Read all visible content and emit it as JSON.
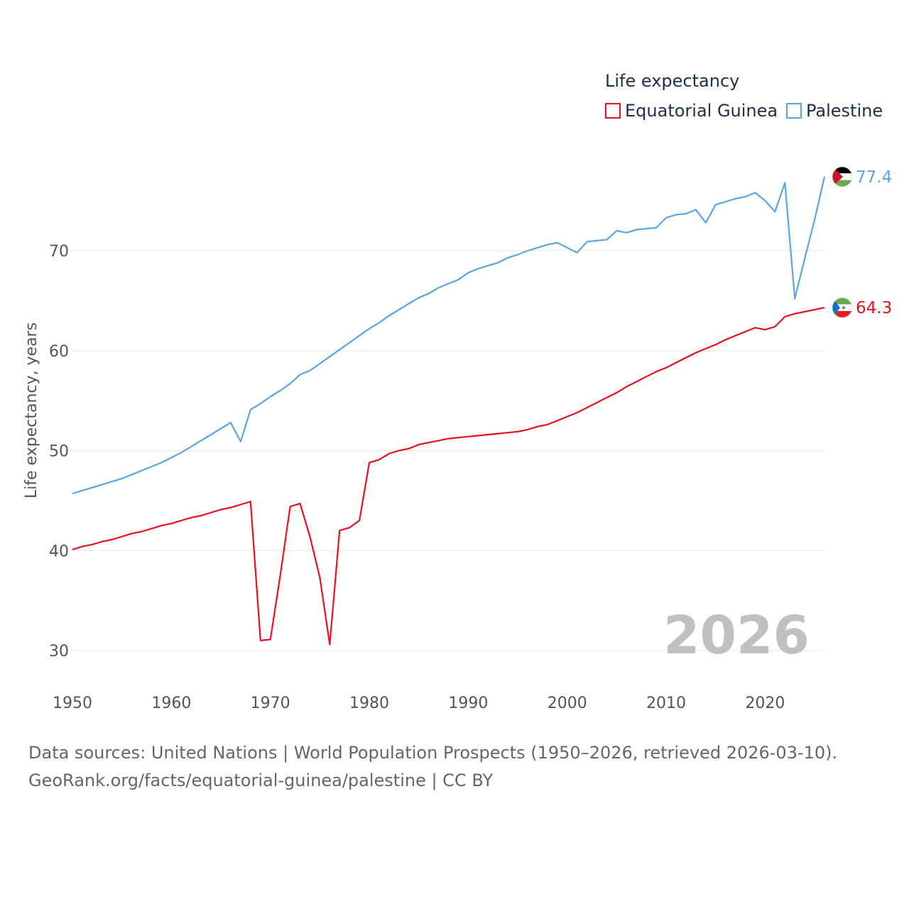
{
  "chart_data": {
    "type": "line",
    "legend_title": "Life expectancy",
    "ylabel": "Life expectancy, years",
    "xlabel": "",
    "xlim": [
      1950,
      2026
    ],
    "ylim": [
      27.5,
      80
    ],
    "x_ticks": [
      1950,
      1960,
      1970,
      1980,
      1990,
      2000,
      2010,
      2020
    ],
    "y_ticks": [
      30,
      40,
      50,
      60,
      70
    ],
    "year_watermark": "2026",
    "legend_position": "top-right",
    "x": [
      1950,
      1951,
      1952,
      1953,
      1954,
      1955,
      1956,
      1957,
      1958,
      1959,
      1960,
      1961,
      1962,
      1963,
      1964,
      1965,
      1966,
      1967,
      1968,
      1969,
      1970,
      1971,
      1972,
      1973,
      1974,
      1975,
      1976,
      1977,
      1978,
      1979,
      1980,
      1981,
      1982,
      1983,
      1984,
      1985,
      1986,
      1987,
      1988,
      1989,
      1990,
      1991,
      1992,
      1993,
      1994,
      1995,
      1996,
      1997,
      1998,
      1999,
      2000,
      2001,
      2002,
      2003,
      2004,
      2005,
      2006,
      2007,
      2008,
      2009,
      2010,
      2011,
      2012,
      2013,
      2014,
      2015,
      2016,
      2017,
      2018,
      2019,
      2020,
      2021,
      2022,
      2023,
      2024,
      2025,
      2026
    ],
    "series": [
      {
        "name": "Equatorial Guinea",
        "color": "#e8121f",
        "end_label": "64.3",
        "values": [
          40.1,
          40.4,
          40.6,
          40.9,
          41.1,
          41.4,
          41.7,
          41.9,
          42.2,
          42.5,
          42.7,
          43.0,
          43.3,
          43.5,
          43.8,
          44.1,
          44.3,
          44.6,
          44.9,
          31.0,
          31.1,
          37.5,
          44.4,
          44.7,
          41.4,
          37.3,
          30.6,
          42.0,
          42.3,
          43.0,
          48.8,
          49.1,
          49.7,
          50.0,
          50.2,
          50.6,
          50.8,
          51.0,
          51.2,
          51.3,
          51.4,
          51.5,
          51.6,
          51.7,
          51.8,
          51.9,
          52.1,
          52.4,
          52.6,
          53.0,
          53.4,
          53.8,
          54.3,
          54.8,
          55.3,
          55.8,
          56.4,
          56.9,
          57.4,
          57.9,
          58.3,
          58.8,
          59.3,
          59.8,
          60.2,
          60.6,
          61.1,
          61.5,
          61.9,
          62.3,
          62.1,
          62.4,
          63.4,
          63.7,
          63.9,
          64.1,
          64.3
        ]
      },
      {
        "name": "Palestine",
        "color": "#5ba4e5",
        "end_label": "77.4",
        "values": [
          45.7,
          46.0,
          46.3,
          46.6,
          46.9,
          47.2,
          47.6,
          48.0,
          48.4,
          48.8,
          49.3,
          49.8,
          50.4,
          51.0,
          51.6,
          52.2,
          52.8,
          50.9,
          54.1,
          54.7,
          55.4,
          56.0,
          56.7,
          57.6,
          58.0,
          58.7,
          59.4,
          60.1,
          60.8,
          61.5,
          62.2,
          62.8,
          63.5,
          64.1,
          64.7,
          65.3,
          65.7,
          66.3,
          66.7,
          67.1,
          67.8,
          68.2,
          68.5,
          68.8,
          69.3,
          69.6,
          70.0,
          70.3,
          70.6,
          70.8,
          70.3,
          69.8,
          70.9,
          71.0,
          71.1,
          72.0,
          71.8,
          72.1,
          72.2,
          72.3,
          73.3,
          73.6,
          73.7,
          74.1,
          72.8,
          74.6,
          74.9,
          75.2,
          75.4,
          75.8,
          75.0,
          73.9,
          76.8,
          65.2,
          69.2,
          73.1,
          77.4
        ]
      }
    ]
  },
  "source": {
    "line1": "Data sources: United Nations | World Population Prospects (1950–2026, retrieved 2026-03-10).",
    "line2": "GeoRank.org/facts/equatorial-guinea/palestine | CC BY"
  }
}
